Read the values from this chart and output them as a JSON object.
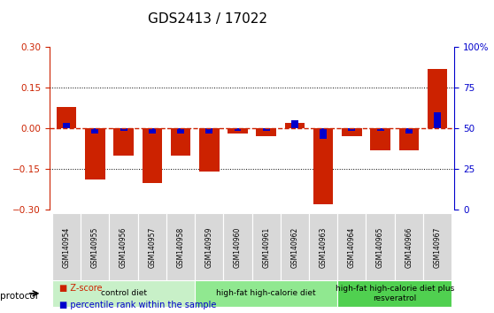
{
  "title": "GDS2413 / 17022",
  "samples": [
    "GSM140954",
    "GSM140955",
    "GSM140956",
    "GSM140957",
    "GSM140958",
    "GSM140959",
    "GSM140960",
    "GSM140961",
    "GSM140962",
    "GSM140963",
    "GSM140964",
    "GSM140965",
    "GSM140966",
    "GSM140967"
  ],
  "zscore": [
    0.08,
    -0.19,
    -0.1,
    -0.2,
    -0.1,
    -0.16,
    -0.02,
    -0.03,
    0.02,
    -0.28,
    -0.03,
    -0.08,
    -0.08,
    0.22
  ],
  "percentile": [
    0.02,
    -0.02,
    -0.01,
    -0.02,
    -0.02,
    -0.02,
    -0.01,
    -0.01,
    0.03,
    -0.04,
    -0.01,
    -0.01,
    -0.02,
    0.06
  ],
  "ylim": [
    -0.3,
    0.3
  ],
  "yticks_left": [
    -0.3,
    -0.15,
    0,
    0.15,
    0.3
  ],
  "yticks_right": [
    0,
    25,
    50,
    75,
    100
  ],
  "bar_width": 0.35,
  "zscore_color": "#cc2200",
  "percentile_color": "#0000cc",
  "zero_line_color": "#cc2200",
  "grid_color": "#000000",
  "bg_color": "#ffffff",
  "tick_area_color": "#d0d0d0",
  "groups": [
    {
      "label": "control diet",
      "start": 0,
      "end": 4,
      "color": "#c8f0c8"
    },
    {
      "label": "high-fat high-calorie diet",
      "start": 5,
      "end": 9,
      "color": "#90e890"
    },
    {
      "label": "high-fat high-calorie diet plus\nresveratrol",
      "start": 10,
      "end": 13,
      "color": "#50d050"
    }
  ],
  "protocol_label": "protocol",
  "legend_zscore": "Z-score",
  "legend_percentile": "percentile rank within the sample",
  "title_fontsize": 11,
  "tick_fontsize": 7.5,
  "label_fontsize": 8
}
